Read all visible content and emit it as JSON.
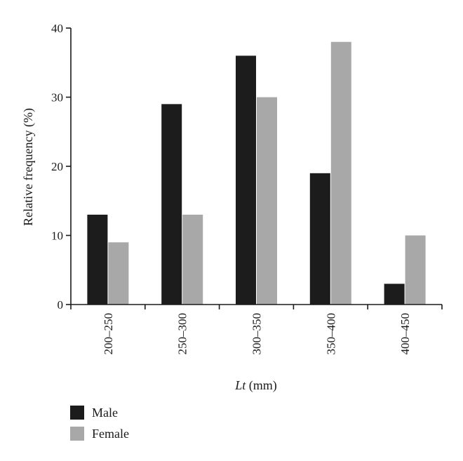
{
  "chart_data": {
    "type": "bar",
    "title": "",
    "xlabel_italic": "Lt",
    "xlabel_unit": "(mm)",
    "ylabel": "Relative frequency (%)",
    "ylim": [
      0,
      40
    ],
    "yticks": [
      0,
      10,
      20,
      30,
      40
    ],
    "categories": [
      "200–250",
      "250–300",
      "300–350",
      "350–400",
      "400–450"
    ],
    "series": [
      {
        "name": "Male",
        "color": "#1c1c1c",
        "values": [
          13,
          29,
          36,
          19,
          3
        ]
      },
      {
        "name": "Female",
        "color": "#a8a8a8",
        "values": [
          9,
          13,
          30,
          38,
          10
        ]
      }
    ],
    "legend_position": "bottom-left",
    "grid": false
  }
}
